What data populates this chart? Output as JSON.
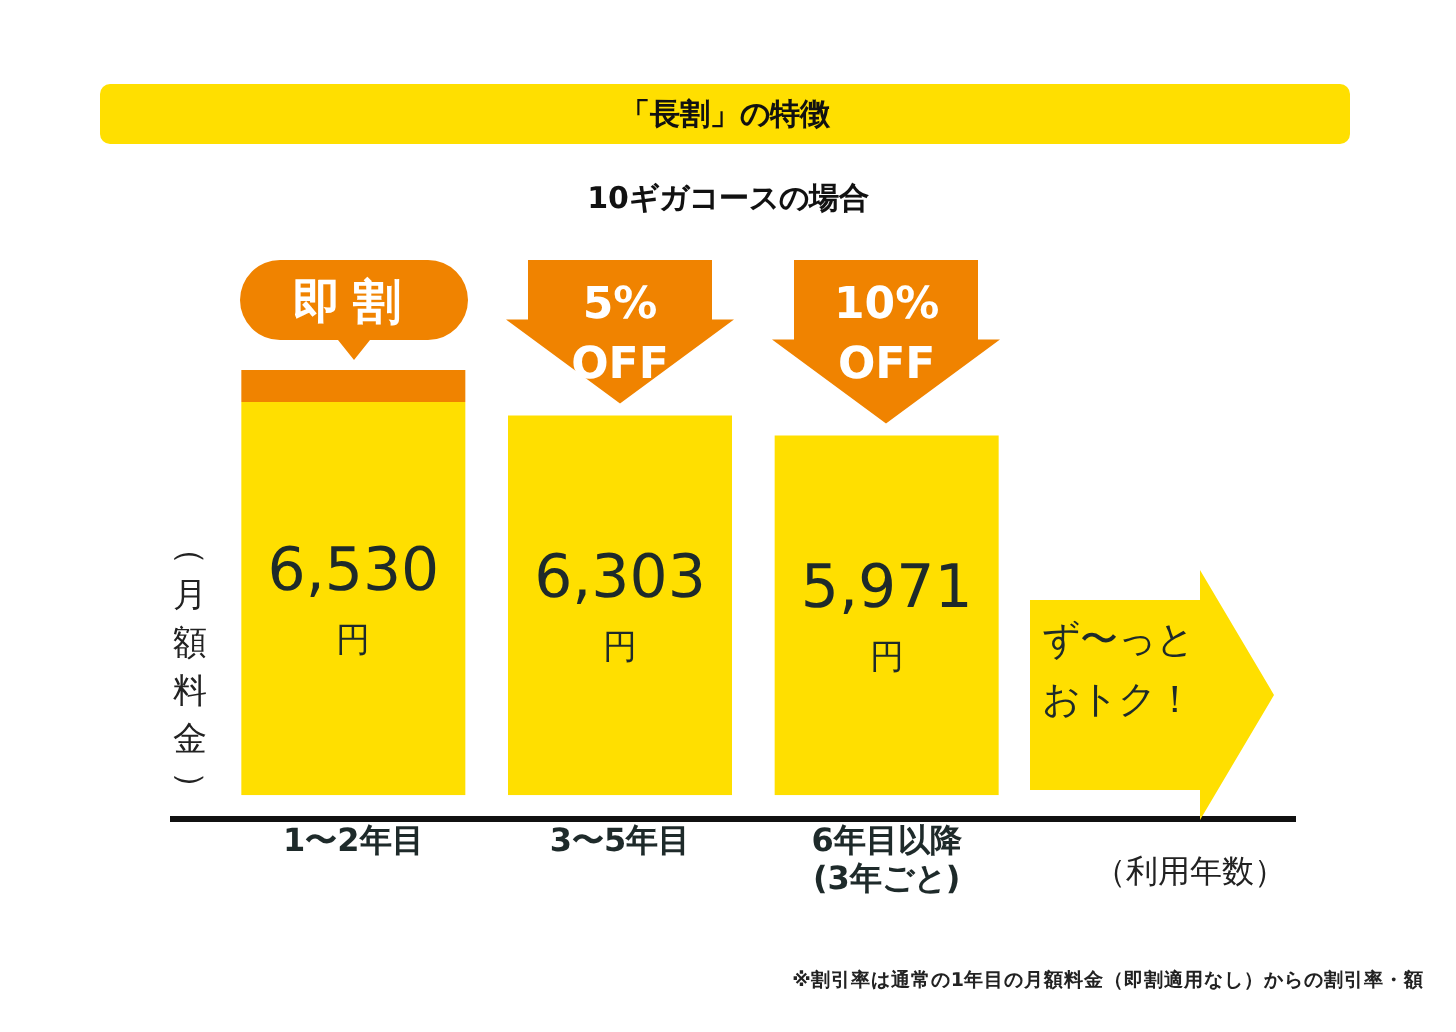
{
  "chart_data": {
    "type": "bar",
    "title": "「長割」の特徴",
    "subtitle": "10ギガコースの場合",
    "ylabel": "（月額料金）",
    "xlabel": "（利用年数）",
    "categories": [
      "1〜2年目",
      "3〜5年目",
      "6年目以降\n(3年ごと)"
    ],
    "stacked": true,
    "legend": false,
    "grid": false,
    "series": [
      {
        "color": "#ffdf00",
        "values": [
          6530,
          6303,
          5971
        ],
        "value_labels": [
          "6,530円",
          "6,303円",
          "5,971円"
        ]
      },
      {
        "color": "#f08300",
        "values": [
          530,
          null,
          null
        ]
      }
    ],
    "annotations": [
      "即割",
      "5%\nOFF",
      "10%\nOFF",
      "ず〜っとおトク！",
      "※割引率は通常の1年目の月額料金（即割適用なし）からの割引率・額"
    ]
  }
}
